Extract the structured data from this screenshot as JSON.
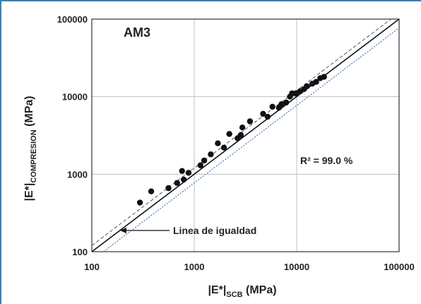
{
  "colors": {
    "frame": "#2e86c1",
    "grid": "#bfbfbf",
    "axis": "#333333",
    "points": "#111111",
    "equality_line": "#111111",
    "upper_band": "#555555",
    "lower_band": "#3a7abf"
  },
  "panel_label": "AM3",
  "r2_text": "R² = 99.0 %",
  "equality_label": "Linea de igualdad",
  "ylabel": {
    "main": "|E*|",
    "sub": "COMPRESION",
    "tail": " (MPa)"
  },
  "xlabel": {
    "main": "|E*|",
    "sub": "SCB",
    "tail": " (MPa)"
  },
  "chart_data": {
    "type": "scatter",
    "xscale": "log",
    "yscale": "log",
    "xlim": [
      100,
      100000
    ],
    "ylim": [
      100,
      100000
    ],
    "xticks": [
      "100",
      "1000",
      "10000",
      "100000"
    ],
    "yticks": [
      "100",
      "1000",
      "10000",
      "100000"
    ],
    "grid": true,
    "annotations": [
      "AM3",
      "R² = 99.0 %",
      "Linea de igualdad"
    ],
    "reference_lines": [
      {
        "kind": "equality",
        "style": "solid",
        "factor": 1.0
      },
      {
        "kind": "upper_band",
        "style": "dashed",
        "factor": 1.2
      },
      {
        "kind": "lower_band",
        "style": "dotted",
        "factor": 0.77
      }
    ],
    "points": [
      [
        295,
        430
      ],
      [
        380,
        600
      ],
      [
        560,
        660
      ],
      [
        680,
        770
      ],
      [
        760,
        1100
      ],
      [
        790,
        850
      ],
      [
        880,
        1040
      ],
      [
        1150,
        1300
      ],
      [
        1250,
        1500
      ],
      [
        1450,
        1800
      ],
      [
        1700,
        2500
      ],
      [
        1950,
        2200
      ],
      [
        2200,
        3300
      ],
      [
        2650,
        2900
      ],
      [
        2850,
        3200
      ],
      [
        2950,
        4000
      ],
      [
        3500,
        4800
      ],
      [
        4700,
        6000
      ],
      [
        5200,
        5500
      ],
      [
        5800,
        7400
      ],
      [
        6700,
        7200
      ],
      [
        7100,
        8000
      ],
      [
        7900,
        8400
      ],
      [
        8600,
        10000
      ],
      [
        9000,
        11000
      ],
      [
        9800,
        11000
      ],
      [
        10800,
        11700
      ],
      [
        11800,
        12500
      ],
      [
        12600,
        13600
      ],
      [
        14200,
        14700
      ],
      [
        15500,
        15500
      ],
      [
        17000,
        17300
      ],
      [
        18500,
        18000
      ]
    ]
  }
}
